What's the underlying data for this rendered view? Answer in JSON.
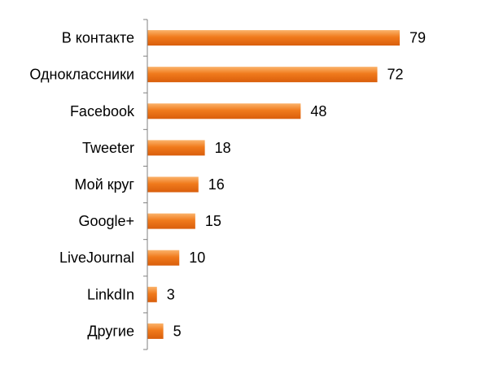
{
  "chart_data": {
    "type": "bar",
    "orientation": "horizontal",
    "categories": [
      "В контакте",
      "Одноклассники",
      "Facebook",
      "Tweeter",
      "Мой круг",
      "Google+",
      "LiveJournal",
      "LinkdIn",
      "Другие"
    ],
    "values": [
      79,
      72,
      48,
      18,
      16,
      15,
      10,
      3,
      5
    ],
    "title": "",
    "xlabel": "",
    "ylabel": "",
    "xlim": [
      0,
      85
    ],
    "grid": false,
    "legend": "none",
    "bar_color": "#f07a1c",
    "bar_gradient_light": "#fbb36b",
    "bar_gradient_dark": "#d95e0c",
    "axis_color": "#808080",
    "data_labels": true
  }
}
